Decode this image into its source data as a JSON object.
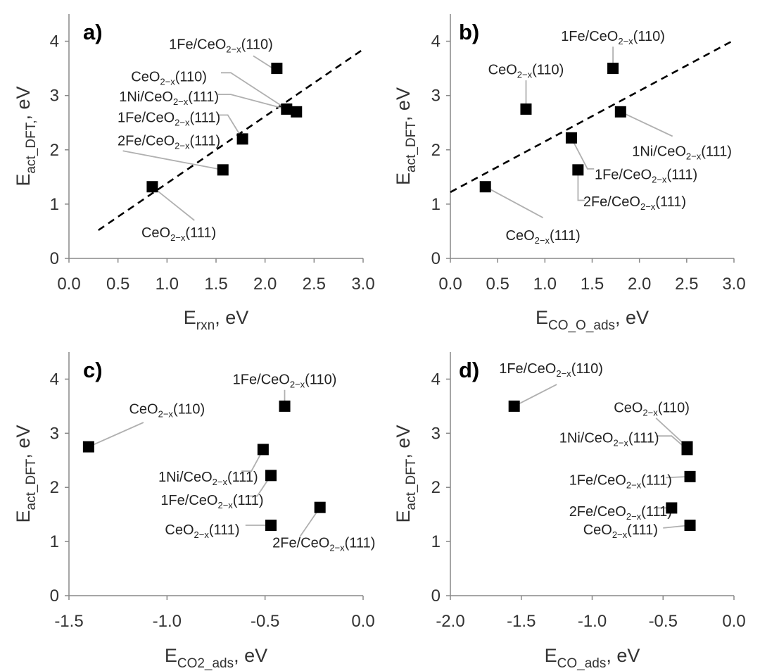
{
  "colors": {
    "marker": "#000000",
    "leader": "#b0b0b0",
    "axis": "#888888",
    "text": "#333333"
  },
  "chart_data": [
    {
      "type": "scatter",
      "panel": "a)",
      "xlabel": "E",
      "xlabel_sub": "rxn",
      "xlabel_tail": ", eV",
      "ylabel": "E",
      "ylabel_sub": "act_DFT,",
      "ylabel_tail": ", eV",
      "xlim": [
        0.0,
        3.0
      ],
      "ylim": [
        0,
        4.5
      ],
      "xticks": [
        0.0,
        0.5,
        1.0,
        1.5,
        2.0,
        2.5,
        3.0
      ],
      "xtick_labels": [
        "0.0",
        "0.5",
        "1.0",
        "1.5",
        "2.0",
        "2.5",
        "3.0"
      ],
      "yticks": [
        0,
        1,
        2,
        3,
        4
      ],
      "ytick_labels": [
        "0",
        "1",
        "2",
        "3",
        "4"
      ],
      "trendline": {
        "style": "dashed",
        "x": [
          0.3,
          3.0
        ],
        "y": [
          0.52,
          3.85
        ]
      },
      "points": [
        {
          "x": 2.12,
          "y": 3.5,
          "pre": "1Fe/CeO",
          "sub": "2−x",
          "post": "(110)",
          "lx": 1.55,
          "ly": 3.95,
          "anchor": "middle",
          "leader": [
            [
              1.88,
              3.73
            ],
            [
              2.08,
              3.5
            ]
          ]
        },
        {
          "x": 2.22,
          "y": 2.75,
          "pre": "CeO",
          "sub": "2−x",
          "post": "(110)",
          "lx": 1.02,
          "ly": 3.35,
          "anchor": "middle",
          "leader": [
            [
              1.55,
              3.42
            ],
            [
              1.65,
              3.42
            ],
            [
              2.22,
              2.75
            ]
          ]
        },
        {
          "x": 2.32,
          "y": 2.7,
          "pre": "1Ni/CeO",
          "sub": "2−x",
          "post": "(111)",
          "lx": 1.02,
          "ly": 2.98,
          "anchor": "middle",
          "leader": [
            [
              1.52,
              3.02
            ],
            [
              1.65,
              3.02
            ],
            [
              2.32,
              2.7
            ]
          ]
        },
        {
          "x": 1.77,
          "y": 2.2,
          "pre": "1Fe/CeO",
          "sub": "2−x",
          "post": "(111)",
          "lx": 1.02,
          "ly": 2.6,
          "anchor": "middle",
          "leader": [
            [
              1.52,
              2.64
            ],
            [
              1.62,
              2.64
            ],
            [
              1.77,
              2.2
            ]
          ]
        },
        {
          "x": 1.57,
          "y": 1.63,
          "pre": "2Fe/CeO",
          "sub": "2−x",
          "post": "(111)",
          "lx": 1.02,
          "ly": 2.17,
          "anchor": "middle",
          "leader": [
            [
              0.55,
              1.98
            ],
            [
              1.57,
              1.63
            ]
          ]
        },
        {
          "x": 0.85,
          "y": 1.32,
          "pre": "CeO",
          "sub": "2−x",
          "post": "(111)",
          "lx": 1.12,
          "ly": 0.48,
          "anchor": "middle",
          "leader": [
            [
              0.85,
              1.32
            ],
            [
              1.28,
              0.7
            ]
          ]
        }
      ]
    },
    {
      "type": "scatter",
      "panel": "b)",
      "xlabel": "E",
      "xlabel_sub": "CO_O_ads",
      "xlabel_tail": ", eV",
      "ylabel": "E",
      "ylabel_sub": "act_DFT",
      "ylabel_tail": ", eV",
      "xlim": [
        0.0,
        3.0
      ],
      "ylim": [
        0,
        4.5
      ],
      "xticks": [
        0.0,
        0.5,
        1.0,
        1.5,
        2.0,
        2.5,
        3.0
      ],
      "xtick_labels": [
        "0.0",
        "0.5",
        "1.0",
        "1.5",
        "2.0",
        "2.5",
        "3.0"
      ],
      "yticks": [
        0,
        1,
        2,
        3,
        4
      ],
      "ytick_labels": [
        "0",
        "1",
        "2",
        "3",
        "4"
      ],
      "trendline": {
        "style": "dashed",
        "x": [
          0.0,
          3.0
        ],
        "y": [
          1.22,
          4.02
        ]
      },
      "points": [
        {
          "x": 1.72,
          "y": 3.5,
          "pre": "1Fe/CeO",
          "sub": "2−x",
          "post": "(110)",
          "lx": 1.72,
          "ly": 4.1,
          "anchor": "middle",
          "leader": [
            [
              1.72,
              3.9
            ],
            [
              1.72,
              3.5
            ]
          ]
        },
        {
          "x": 0.8,
          "y": 2.75,
          "pre": "CeO",
          "sub": "2−x",
          "post": "(110)",
          "lx": 0.8,
          "ly": 3.48,
          "anchor": "middle",
          "leader": [
            [
              0.8,
              3.28
            ],
            [
              0.8,
              2.75
            ]
          ]
        },
        {
          "x": 1.8,
          "y": 2.7,
          "pre": "1Ni/CeO",
          "sub": "2−x",
          "post": "(111)",
          "lx": 2.45,
          "ly": 1.98,
          "anchor": "middle",
          "leader": [
            [
              1.8,
              2.7
            ],
            [
              2.35,
              2.25
            ]
          ]
        },
        {
          "x": 1.28,
          "y": 2.22,
          "pre": "1Fe/CeO",
          "sub": "2−x",
          "post": "(111)",
          "lx": 2.07,
          "ly": 1.55,
          "anchor": "middle",
          "leader": [
            [
              1.28,
              2.22
            ],
            [
              1.45,
              1.65
            ],
            [
              1.52,
              1.65
            ]
          ]
        },
        {
          "x": 1.35,
          "y": 1.63,
          "pre": "2Fe/CeO",
          "sub": "2−x",
          "post": "(111)",
          "lx": 1.95,
          "ly": 1.05,
          "anchor": "middle",
          "leader": [
            [
              1.35,
              1.63
            ],
            [
              1.35,
              1.07
            ],
            [
              1.42,
              1.07
            ]
          ]
        },
        {
          "x": 0.37,
          "y": 1.32,
          "pre": "CeO",
          "sub": "2−x",
          "post": "(111)",
          "lx": 0.98,
          "ly": 0.43,
          "anchor": "middle",
          "leader": [
            [
              0.37,
              1.32
            ],
            [
              0.98,
              0.75
            ]
          ]
        }
      ]
    },
    {
      "type": "scatter",
      "panel": "c)",
      "xlabel": "E",
      "xlabel_sub": "CO2_ads",
      "xlabel_tail": ", eV",
      "ylabel": "E",
      "ylabel_sub": "act_DFT",
      "ylabel_tail": ", eV",
      "xlim": [
        -1.5,
        0.0
      ],
      "ylim": [
        0,
        4.5
      ],
      "xticks": [
        -1.5,
        -1.0,
        -0.5,
        0.0
      ],
      "xtick_labels": [
        "-1.5",
        "-1.0",
        "-0.5",
        "0.0"
      ],
      "yticks": [
        0,
        1,
        2,
        3,
        4
      ],
      "ytick_labels": [
        "0",
        "1",
        "2",
        "3",
        "4"
      ],
      "points": [
        {
          "x": -0.4,
          "y": 3.5,
          "pre": "1Fe/CeO",
          "sub": "2−x",
          "post": "(110)",
          "lx": -0.4,
          "ly": 4.0,
          "anchor": "middle",
          "leader": [
            [
              -0.4,
              3.8
            ],
            [
              -0.4,
              3.5
            ]
          ]
        },
        {
          "x": -1.4,
          "y": 2.75,
          "pre": "CeO",
          "sub": "2−x",
          "post": "(110)",
          "lx": -1.0,
          "ly": 3.45,
          "anchor": "middle",
          "leader": [
            [
              -1.4,
              2.75
            ],
            [
              -1.12,
              3.2
            ]
          ]
        },
        {
          "x": -0.51,
          "y": 2.7,
          "pre": "1Ni/CeO",
          "sub": "2−x",
          "post": "(111)",
          "lx": -0.79,
          "ly": 2.2,
          "anchor": "middle",
          "leader": [
            [
              -0.51,
              2.7
            ],
            [
              -0.57,
              2.3
            ],
            [
              -0.62,
              2.3
            ]
          ]
        },
        {
          "x": -0.47,
          "y": 2.22,
          "pre": "1Fe/CeO",
          "sub": "2−x",
          "post": "(111)",
          "lx": -0.77,
          "ly": 1.77,
          "anchor": "middle",
          "leader": [
            [
              -0.47,
              2.22
            ],
            [
              -0.54,
              1.84
            ],
            [
              -0.6,
              1.84
            ]
          ]
        },
        {
          "x": -0.22,
          "y": 1.63,
          "pre": "2Fe/CeO",
          "sub": "2−x",
          "post": "(111)",
          "lx": -0.2,
          "ly": 0.98,
          "anchor": "middle",
          "leader": [
            [
              -0.22,
              1.63
            ],
            [
              -0.32,
              1.1
            ]
          ]
        },
        {
          "x": -0.47,
          "y": 1.3,
          "pre": "CeO",
          "sub": "2−x",
          "post": "(111)",
          "lx": -0.82,
          "ly": 1.22,
          "anchor": "middle",
          "leader": [
            [
              -0.47,
              1.3
            ],
            [
              -0.6,
              1.3
            ]
          ]
        }
      ]
    },
    {
      "type": "scatter",
      "panel": "d)",
      "xlabel": "E",
      "xlabel_sub": "CO_ads",
      "xlabel_tail": ", eV",
      "ylabel": "E",
      "ylabel_sub": "act_DFT",
      "ylabel_tail": ", eV",
      "xlim": [
        -2.0,
        0.0
      ],
      "ylim": [
        0,
        4.5
      ],
      "xticks": [
        -2.0,
        -1.5,
        -1.0,
        -0.5,
        0.0
      ],
      "xtick_labels": [
        "-2.0",
        "-1.5",
        "-1.0",
        "-0.5",
        "0.0"
      ],
      "yticks": [
        0,
        1,
        2,
        3,
        4
      ],
      "ytick_labels": [
        "0",
        "1",
        "2",
        "3",
        "4"
      ],
      "points": [
        {
          "x": -1.55,
          "y": 3.5,
          "pre": "1Fe/CeO",
          "sub": "2−x",
          "post": "(110)",
          "lx": -1.29,
          "ly": 4.2,
          "anchor": "middle",
          "leader": [
            [
              -1.55,
              3.5
            ],
            [
              -1.25,
              3.9
            ]
          ]
        },
        {
          "x": -0.33,
          "y": 2.75,
          "pre": "CeO",
          "sub": "2−x",
          "post": "(110)",
          "lx": -0.58,
          "ly": 3.48,
          "anchor": "middle",
          "leader": [
            [
              -0.55,
              3.28
            ],
            [
              -0.33,
              2.75
            ]
          ]
        },
        {
          "x": -0.33,
          "y": 2.7,
          "pre": "1Ni/CeO",
          "sub": "2−x",
          "post": "(111)",
          "lx": -0.88,
          "ly": 2.92,
          "anchor": "middle",
          "leader": [
            [
              -0.55,
              2.95
            ],
            [
              -0.44,
              2.95
            ],
            [
              -0.33,
              2.7
            ]
          ]
        },
        {
          "x": -0.31,
          "y": 2.2,
          "pre": "1Fe/CeO",
          "sub": "2−x",
          "post": "(111)",
          "lx": -0.8,
          "ly": 2.14,
          "anchor": "middle",
          "leader": [
            [
              -0.48,
              2.18
            ],
            [
              -0.31,
              2.2
            ]
          ]
        },
        {
          "x": -0.44,
          "y": 1.62,
          "pre": "2Fe/CeO",
          "sub": "2−x",
          "post": "(111)",
          "lx": -0.8,
          "ly": 1.56,
          "anchor": "middle",
          "leader": [
            [
              -0.54,
              1.62
            ],
            [
              -0.44,
              1.62
            ]
          ]
        },
        {
          "x": -0.31,
          "y": 1.3,
          "pre": "CeO",
          "sub": "2−x",
          "post": "(111)",
          "lx": -0.8,
          "ly": 1.22,
          "anchor": "middle",
          "leader": [
            [
              -0.5,
              1.25
            ],
            [
              -0.31,
              1.3
            ]
          ]
        }
      ]
    }
  ]
}
